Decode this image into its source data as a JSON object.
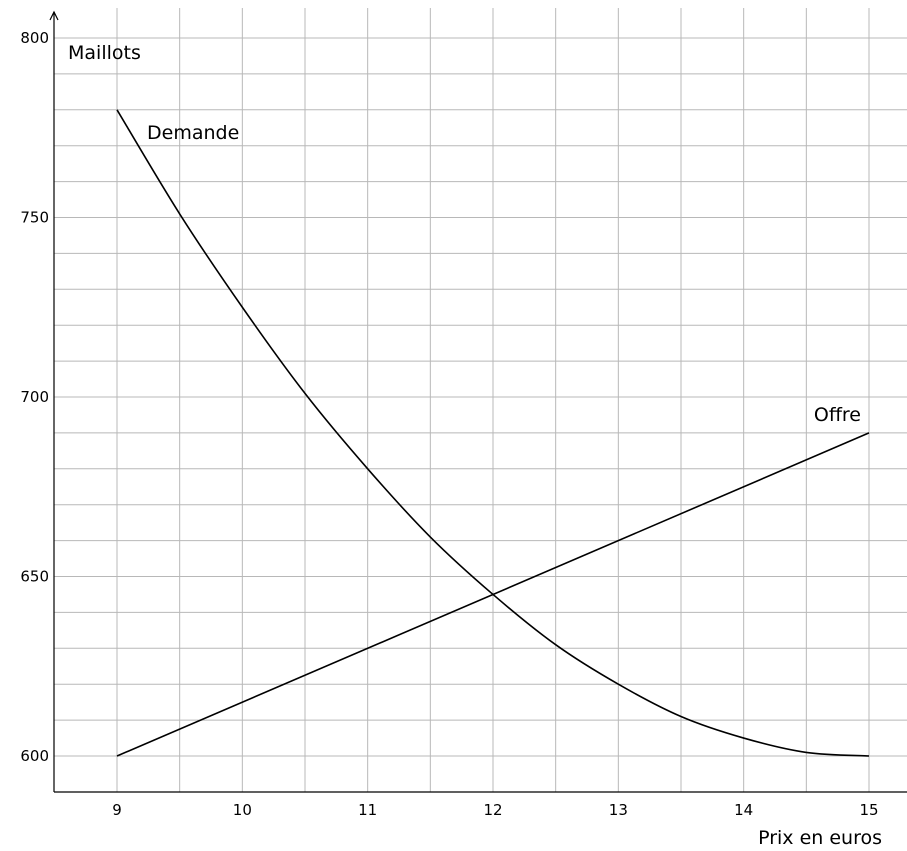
{
  "chart_data": {
    "type": "line",
    "xlabel": "Prix en euros",
    "ylabel": "Maillots",
    "xlim": [
      8.5,
      15.3
    ],
    "ylim": [
      590,
      800
    ],
    "x_ticks": [
      9,
      10,
      11,
      12,
      13,
      14,
      15
    ],
    "y_ticks": [
      600,
      650,
      700,
      750,
      800
    ],
    "grid": true,
    "series": [
      {
        "name": "Demande",
        "x": [
          9,
          9.5,
          10,
          10.5,
          11,
          11.5,
          12,
          12.5,
          13,
          13.5,
          14,
          14.5,
          15
        ],
        "y": [
          780,
          751,
          725,
          701,
          680,
          661,
          645,
          631,
          620,
          611,
          605,
          601,
          600
        ]
      },
      {
        "name": "Offre",
        "x": [
          9,
          15
        ],
        "y": [
          600,
          690
        ]
      }
    ]
  }
}
